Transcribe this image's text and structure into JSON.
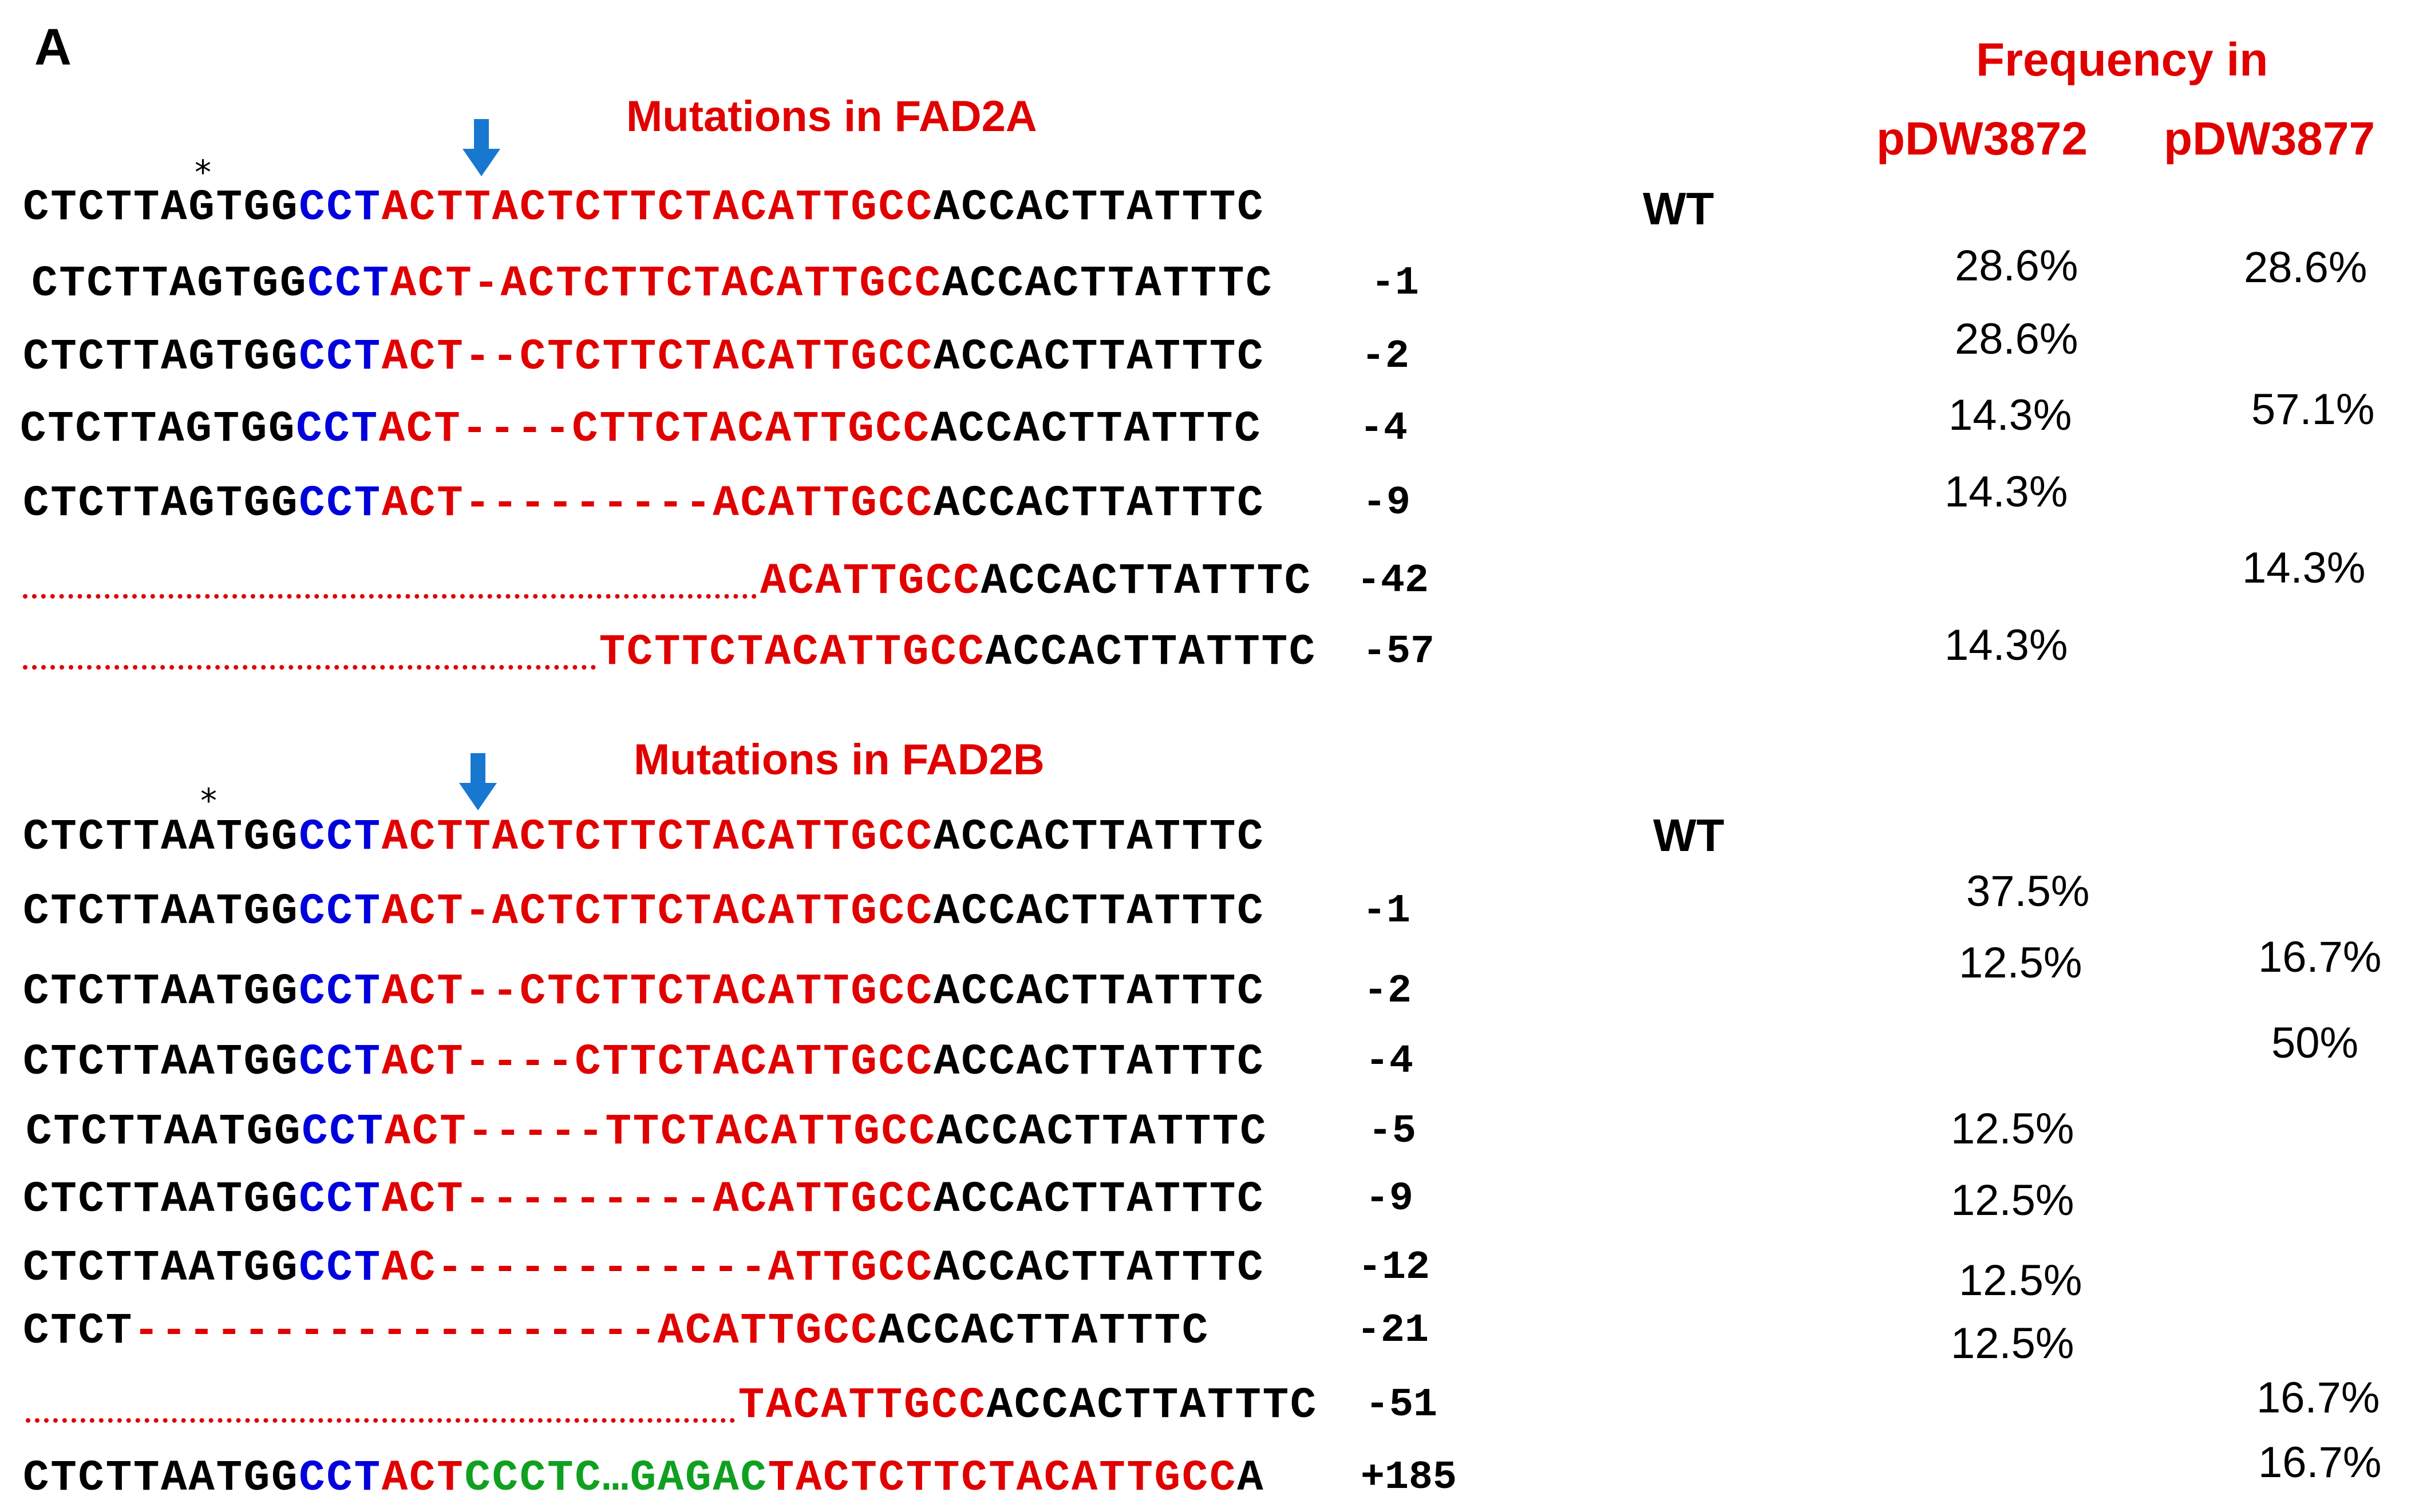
{
  "panel_label": "A",
  "header": {
    "line1": "Frequency in",
    "col1": "pDW3872",
    "col2": "pDW3877"
  },
  "fad2a": {
    "title": "Mutations in FAD2A",
    "marker": "*",
    "wt_label": "WT",
    "rows": [
      {
        "segments": [
          [
            "k",
            "CTCTTAGTGG"
          ],
          [
            "b",
            "CCT"
          ],
          [
            "r",
            "ACTTACTCTTCTACATTGCC"
          ],
          [
            "k",
            "ACCACTTATTTC"
          ]
        ],
        "mutation": "",
        "f1": "",
        "f2": ""
      },
      {
        "segments": [
          [
            "k",
            "CTCTTAGTGG"
          ],
          [
            "b",
            "CCT"
          ],
          [
            "r",
            "ACT-ACTCTTCTACATTGCC"
          ],
          [
            "k",
            "ACCACTTATTTC"
          ]
        ],
        "mutation": "-1",
        "f1": "28.6%",
        "f2": "28.6%"
      },
      {
        "segments": [
          [
            "k",
            "CTCTTAGTGG"
          ],
          [
            "b",
            "CCT"
          ],
          [
            "r",
            "ACT--CTCTTCTACATTGCC"
          ],
          [
            "k",
            "ACCACTTATTTC"
          ]
        ],
        "mutation": "-2",
        "f1": "28.6%",
        "f2": ""
      },
      {
        "segments": [
          [
            "k",
            "CTCTTAGTGG"
          ],
          [
            "b",
            "CCT"
          ],
          [
            "r",
            "ACT----CTTCTACATTGCC"
          ],
          [
            "k",
            "ACCACTTATTTC"
          ]
        ],
        "mutation": "-4",
        "f1": "14.3%",
        "f2": "57.1%"
      },
      {
        "segments": [
          [
            "k",
            "CTCTTAGTGG"
          ],
          [
            "b",
            "CCT"
          ],
          [
            "r",
            "ACT---------ACATTGCC"
          ],
          [
            "k",
            "ACCACTTATTTC"
          ]
        ],
        "mutation": "-9",
        "f1": "14.3%",
        "f2": ""
      },
      {
        "segments": [
          [
            "r",
            "ACATTGCC"
          ],
          [
            "k",
            "ACCACTTATTTC"
          ]
        ],
        "mutation": "-42",
        "f1": "",
        "f2": "14.3%"
      },
      {
        "segments": [
          [
            "r",
            "TCTTCTACATTGCC"
          ],
          [
            "k",
            "ACCACTTATTTC"
          ]
        ],
        "mutation": "-57",
        "f1": "14.3%",
        "f2": ""
      }
    ]
  },
  "fad2b": {
    "title": "Mutations in FAD2B",
    "marker": "*",
    "wt_label": "WT",
    "rows": [
      {
        "segments": [
          [
            "k",
            "CTCTTAATGG"
          ],
          [
            "b",
            "CCT"
          ],
          [
            "r",
            "ACTTACTCTTCTACATTGCC"
          ],
          [
            "k",
            "ACCACTTATTTC"
          ]
        ],
        "mutation": "",
        "f1": "",
        "f2": ""
      },
      {
        "segments": [
          [
            "k",
            "CTCTTAATGG"
          ],
          [
            "b",
            "CCT"
          ],
          [
            "r",
            "ACT-ACTCTTCTACATTGCC"
          ],
          [
            "k",
            "ACCACTTATTTC"
          ]
        ],
        "mutation": "-1",
        "f1": "37.5%",
        "f2": ""
      },
      {
        "segments": [
          [
            "k",
            "CTCTTAATGG"
          ],
          [
            "b",
            "CCT"
          ],
          [
            "r",
            "ACT--CTCTTCTACATTGCC"
          ],
          [
            "k",
            "ACCACTTATTTC"
          ]
        ],
        "mutation": "-2",
        "f1": "12.5%",
        "f2": "16.7%"
      },
      {
        "segments": [
          [
            "k",
            "CTCTTAATGG"
          ],
          [
            "b",
            "CCT"
          ],
          [
            "r",
            "ACT----CTTCTACATTGCC"
          ],
          [
            "k",
            "ACCACTTATTTC"
          ]
        ],
        "mutation": "-4",
        "f1": "",
        "f2": "50%"
      },
      {
        "segments": [
          [
            "k",
            "CTCTTAATGG"
          ],
          [
            "b",
            "CCT"
          ],
          [
            "r",
            "ACT-----TTCTACATTGCC"
          ],
          [
            "k",
            "ACCACTTATTTC"
          ]
        ],
        "mutation": "-5",
        "f1": "12.5%",
        "f2": ""
      },
      {
        "segments": [
          [
            "k",
            "CTCTTAATGG"
          ],
          [
            "b",
            "CCT"
          ],
          [
            "r",
            "ACT---------ACATTGCC"
          ],
          [
            "k",
            "ACCACTTATTTC"
          ]
        ],
        "mutation": "-9",
        "f1": "12.5%",
        "f2": ""
      },
      {
        "segments": [
          [
            "k",
            "CTCTTAATGG"
          ],
          [
            "b",
            "CCT"
          ],
          [
            "r",
            "AC------------ATTGCC"
          ],
          [
            "k",
            "ACCACTTATTTC"
          ]
        ],
        "mutation": "-12",
        "f1": "12.5%",
        "f2": ""
      },
      {
        "segments": [
          [
            "k",
            "CTCT"
          ],
          [
            "r",
            "-------------------ACATTGCC"
          ],
          [
            "k",
            "ACCACTTATTTC"
          ]
        ],
        "mutation": "-21",
        "f1": "12.5%",
        "f2": ""
      },
      {
        "segments": [
          [
            "r",
            "TACATTGCC"
          ],
          [
            "k",
            "ACCACTTATTTC"
          ]
        ],
        "mutation": "-51",
        "f1": "",
        "f2": "16.7%"
      },
      {
        "segments": [
          [
            "k",
            "CTCTTAATGG"
          ],
          [
            "b",
            "CCT"
          ],
          [
            "r",
            "ACT"
          ],
          [
            "g",
            "CCCTC…GAGAC"
          ],
          [
            "r",
            "TACTCTTCTACATTGCC"
          ],
          [
            "k",
            "A"
          ]
        ],
        "mutation": "+185",
        "f1": "",
        "f2": "16.7%"
      }
    ]
  }
}
